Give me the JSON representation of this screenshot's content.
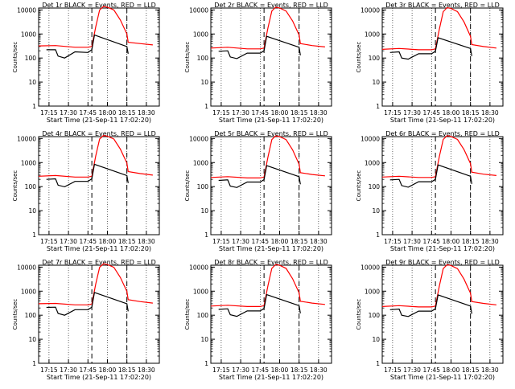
{
  "time_axis_label": "Start Time (21-Sep-11 17:02:20)",
  "colors": {
    "events": "#000000",
    "lld": "#ff0000",
    "frame": "#000000",
    "markers": "#000000"
  },
  "chart_data": [
    {
      "type": "line",
      "title": "Det 1r  BLACK = Events, RED = LLD",
      "xlabel": "Start Time (21-Sep-11 17:02:20)",
      "ylabel": "Counts/sec",
      "yscale": "log",
      "ylim": [
        1,
        12000
      ],
      "xlim": [
        "17:07",
        "18:40"
      ],
      "x_tick_labels": [
        "17:15",
        "17:30",
        "17:45",
        "18:00",
        "18:15",
        "18:30"
      ],
      "y_tick_labels": [
        "1",
        "10",
        "100",
        "1000",
        "10000"
      ],
      "minor_ticks": true,
      "event_markers": [
        "17:48",
        "18:15"
      ],
      "series": [
        {
          "color": "red",
          "x": [
            "17:07",
            "17:20",
            "17:35",
            "17:45",
            "17:48",
            "17:51",
            "17:54",
            "17:57",
            "18:00",
            "18:05",
            "18:10",
            "18:15",
            "18:16",
            "18:25",
            "18:35"
          ],
          "y": [
            320,
            330,
            280,
            280,
            300,
            2000,
            10000,
            14000,
            13000,
            10000,
            3800,
            1000,
            450,
            400,
            350
          ]
        },
        {
          "color": "black",
          "x": [
            "17:13",
            "17:20",
            "17:22",
            "17:27",
            "17:35",
            "17:45",
            "17:48",
            "17:50",
            "18:15",
            "18:16"
          ],
          "y": [
            220,
            220,
            120,
            100,
            180,
            170,
            220,
            900,
            300,
            150
          ]
        }
      ]
    },
    {
      "type": "line",
      "title": "Det 2r  BLACK = Events, RED = LLD",
      "xlabel": "Start Time (21-Sep-11 17:02:20)",
      "ylabel": "Counts/sec",
      "yscale": "log",
      "ylim": [
        1,
        12000
      ],
      "xlim": [
        "17:07",
        "18:40"
      ],
      "x_tick_labels": [
        "17:15",
        "17:30",
        "17:45",
        "18:00",
        "18:15",
        "18:30"
      ],
      "y_tick_labels": [
        "1",
        "10",
        "100",
        "1000",
        "10000"
      ],
      "minor_ticks": true,
      "event_markers": [
        "17:48",
        "18:15"
      ],
      "series": [
        {
          "color": "red",
          "x": [
            "17:07",
            "17:20",
            "17:35",
            "17:45",
            "17:48",
            "17:51",
            "17:54",
            "17:57",
            "18:00",
            "18:05",
            "18:10",
            "18:15",
            "18:16",
            "18:25",
            "18:35"
          ],
          "y": [
            260,
            280,
            240,
            240,
            260,
            1800,
            9000,
            13000,
            12000,
            9000,
            3500,
            900,
            400,
            330,
            290
          ]
        },
        {
          "color": "black",
          "x": [
            "17:13",
            "17:20",
            "17:22",
            "17:27",
            "17:35",
            "17:45",
            "17:48",
            "17:50",
            "18:15",
            "18:16"
          ],
          "y": [
            190,
            200,
            110,
            95,
            160,
            160,
            200,
            800,
            280,
            130
          ]
        }
      ]
    },
    {
      "type": "line",
      "title": "Det 3r  BLACK = Events, RED = LLD",
      "xlabel": "Start Time (21-Sep-11 17:02:20)",
      "ylabel": "Counts/sec",
      "yscale": "log",
      "ylim": [
        1,
        12000
      ],
      "xlim": [
        "17:07",
        "18:40"
      ],
      "x_tick_labels": [
        "17:15",
        "17:30",
        "17:45",
        "18:00",
        "18:15",
        "18:30"
      ],
      "y_tick_labels": [
        "1",
        "10",
        "100",
        "1000",
        "10000"
      ],
      "minor_ticks": true,
      "event_markers": [
        "17:48",
        "18:15"
      ],
      "series": [
        {
          "color": "red",
          "x": [
            "17:07",
            "17:20",
            "17:35",
            "17:45",
            "17:48",
            "17:51",
            "17:54",
            "17:57",
            "18:00",
            "18:05",
            "18:10",
            "18:15",
            "18:16",
            "18:25",
            "18:35"
          ],
          "y": [
            230,
            250,
            220,
            220,
            240,
            1600,
            8500,
            12500,
            11500,
            8500,
            3200,
            800,
            360,
            300,
            260
          ]
        },
        {
          "color": "black",
          "x": [
            "17:13",
            "17:20",
            "17:22",
            "17:27",
            "17:35",
            "17:45",
            "17:48",
            "17:50",
            "18:15",
            "18:16"
          ],
          "y": [
            170,
            180,
            100,
            90,
            150,
            150,
            190,
            700,
            250,
            120
          ]
        }
      ]
    },
    {
      "type": "line",
      "title": "Det 4r  BLACK = Events, RED = LLD",
      "xlabel": "Start Time (21-Sep-11 17:02:20)",
      "ylabel": "Counts/sec",
      "yscale": "log",
      "ylim": [
        1,
        12000
      ],
      "xlim": [
        "17:07",
        "18:40"
      ],
      "x_tick_labels": [
        "17:15",
        "17:30",
        "17:45",
        "18:00",
        "18:15",
        "18:30"
      ],
      "y_tick_labels": [
        "1",
        "10",
        "100",
        "1000",
        "10000"
      ],
      "minor_ticks": true,
      "event_markers": [
        "17:48",
        "18:15"
      ],
      "series": [
        {
          "color": "red",
          "x": [
            "17:07",
            "17:20",
            "17:35",
            "17:45",
            "17:48",
            "17:51",
            "17:54",
            "17:57",
            "18:00",
            "18:05",
            "18:10",
            "18:15",
            "18:16",
            "18:25",
            "18:35"
          ],
          "y": [
            270,
            290,
            250,
            250,
            270,
            1900,
            9500,
            13500,
            12500,
            9500,
            3600,
            950,
            420,
            350,
            300
          ]
        },
        {
          "color": "black",
          "x": [
            "17:13",
            "17:20",
            "17:22",
            "17:27",
            "17:35",
            "17:45",
            "17:48",
            "17:50",
            "18:15",
            "18:16"
          ],
          "y": [
            200,
            210,
            115,
            98,
            165,
            165,
            210,
            850,
            290,
            140
          ]
        }
      ]
    },
    {
      "type": "line",
      "title": "Det 5r  BLACK = Events, RED = LLD",
      "xlabel": "Start Time (21-Sep-11 17:02:20)",
      "ylabel": "Counts/sec",
      "yscale": "log",
      "ylim": [
        1,
        12000
      ],
      "xlim": [
        "17:07",
        "18:40"
      ],
      "x_tick_labels": [
        "17:15",
        "17:30",
        "17:45",
        "18:00",
        "18:15",
        "18:30"
      ],
      "y_tick_labels": [
        "1",
        "10",
        "100",
        "1000",
        "10000"
      ],
      "minor_ticks": true,
      "event_markers": [
        "17:48",
        "18:15"
      ],
      "series": [
        {
          "color": "red",
          "x": [
            "17:07",
            "17:20",
            "17:35",
            "17:45",
            "17:48",
            "17:51",
            "17:54",
            "17:57",
            "18:00",
            "18:05",
            "18:10",
            "18:15",
            "18:16",
            "18:25",
            "18:35"
          ],
          "y": [
            240,
            260,
            230,
            230,
            250,
            1700,
            9000,
            13000,
            12000,
            9000,
            3400,
            850,
            380,
            320,
            280
          ]
        },
        {
          "color": "black",
          "x": [
            "17:13",
            "17:20",
            "17:22",
            "17:27",
            "17:35",
            "17:45",
            "17:48",
            "17:50",
            "18:15",
            "18:16"
          ],
          "y": [
            180,
            190,
            105,
            92,
            155,
            155,
            195,
            750,
            260,
            125
          ]
        }
      ]
    },
    {
      "type": "line",
      "title": "Det 6r  BLACK = Events, RED = LLD",
      "xlabel": "Start Time (21-Sep-11 17:02:20)",
      "ylabel": "Counts/sec",
      "yscale": "log",
      "ylim": [
        1,
        12000
      ],
      "xlim": [
        "17:07",
        "18:40"
      ],
      "x_tick_labels": [
        "17:15",
        "17:30",
        "17:45",
        "18:00",
        "18:15",
        "18:30"
      ],
      "y_tick_labels": [
        "1",
        "10",
        "100",
        "1000",
        "10000"
      ],
      "minor_ticks": true,
      "event_markers": [
        "17:48",
        "18:15"
      ],
      "series": [
        {
          "color": "red",
          "x": [
            "17:07",
            "17:20",
            "17:35",
            "17:45",
            "17:48",
            "17:51",
            "17:54",
            "17:57",
            "18:00",
            "18:05",
            "18:10",
            "18:15",
            "18:16",
            "18:25",
            "18:35"
          ],
          "y": [
            250,
            270,
            240,
            240,
            260,
            1800,
            9200,
            13200,
            12200,
            9200,
            3500,
            900,
            400,
            330,
            290
          ]
        },
        {
          "color": "black",
          "x": [
            "17:13",
            "17:20",
            "17:22",
            "17:27",
            "17:35",
            "17:45",
            "17:48",
            "17:50",
            "18:15",
            "18:16"
          ],
          "y": [
            190,
            200,
            110,
            95,
            160,
            160,
            200,
            800,
            270,
            130
          ]
        }
      ]
    },
    {
      "type": "line",
      "title": "Det 7r  BLACK = Events, RED = LLD",
      "xlabel": "Start Time (21-Sep-11 17:02:20)",
      "ylabel": "Counts/sec",
      "yscale": "log",
      "ylim": [
        1,
        12000
      ],
      "xlim": [
        "17:07",
        "18:40"
      ],
      "x_tick_labels": [
        "17:15",
        "17:30",
        "17:45",
        "18:00",
        "18:15",
        "18:30"
      ],
      "y_tick_labels": [
        "1",
        "10",
        "100",
        "1000",
        "10000"
      ],
      "minor_ticks": true,
      "event_markers": [
        "17:48",
        "18:15"
      ],
      "series": [
        {
          "color": "red",
          "x": [
            "17:07",
            "17:20",
            "17:35",
            "17:45",
            "17:48",
            "17:51",
            "17:54",
            "17:57",
            "18:00",
            "18:05",
            "18:10",
            "18:15",
            "18:16",
            "18:25",
            "18:35"
          ],
          "y": [
            300,
            310,
            270,
            270,
            290,
            2000,
            9800,
            13800,
            12800,
            9800,
            3700,
            980,
            440,
            370,
            320
          ]
        },
        {
          "color": "black",
          "x": [
            "17:13",
            "17:20",
            "17:22",
            "17:27",
            "17:35",
            "17:45",
            "17:48",
            "17:50",
            "18:15",
            "18:16"
          ],
          "y": [
            210,
            215,
            118,
            100,
            170,
            170,
            215,
            880,
            300,
            145
          ]
        }
      ]
    },
    {
      "type": "line",
      "title": "Det 8r  BLACK = Events, RED = LLD",
      "xlabel": "Start Time (21-Sep-11 17:02:20)",
      "ylabel": "Counts/sec",
      "yscale": "log",
      "ylim": [
        1,
        12000
      ],
      "xlim": [
        "17:07",
        "18:40"
      ],
      "x_tick_labels": [
        "17:15",
        "17:30",
        "17:45",
        "18:00",
        "18:15",
        "18:30"
      ],
      "y_tick_labels": [
        "1",
        "10",
        "100",
        "1000",
        "10000"
      ],
      "minor_ticks": true,
      "event_markers": [
        "17:48",
        "18:15"
      ],
      "series": [
        {
          "color": "red",
          "x": [
            "17:07",
            "17:20",
            "17:35",
            "17:45",
            "17:48",
            "17:51",
            "17:54",
            "17:57",
            "18:00",
            "18:05",
            "18:10",
            "18:15",
            "18:16",
            "18:25",
            "18:35"
          ],
          "y": [
            240,
            260,
            230,
            230,
            250,
            1700,
            8900,
            12900,
            11900,
            8900,
            3300,
            850,
            380,
            320,
            280
          ]
        },
        {
          "color": "black",
          "x": [
            "17:13",
            "17:20",
            "17:22",
            "17:27",
            "17:35",
            "17:45",
            "17:48",
            "17:50",
            "18:15",
            "18:16"
          ],
          "y": [
            175,
            185,
            105,
            90,
            150,
            150,
            190,
            720,
            250,
            120
          ]
        }
      ]
    },
    {
      "type": "line",
      "title": "Det 9r  BLACK = Events, RED = LLD",
      "xlabel": "Start Time (21-Sep-11 17:02:20)",
      "ylabel": "Counts/sec",
      "yscale": "log",
      "ylim": [
        1,
        12000
      ],
      "xlim": [
        "17:07",
        "18:40"
      ],
      "x_tick_labels": [
        "17:15",
        "17:30",
        "17:45",
        "18:00",
        "18:15",
        "18:30"
      ],
      "y_tick_labels": [
        "1",
        "10",
        "100",
        "1000",
        "10000"
      ],
      "minor_ticks": true,
      "event_markers": [
        "17:48",
        "18:15"
      ],
      "series": [
        {
          "color": "red",
          "x": [
            "17:07",
            "17:20",
            "17:35",
            "17:45",
            "17:48",
            "17:51",
            "17:54",
            "17:57",
            "18:00",
            "18:05",
            "18:10",
            "18:15",
            "18:16",
            "18:25",
            "18:35"
          ],
          "y": [
            230,
            250,
            220,
            220,
            240,
            1650,
            8700,
            12600,
            11600,
            8700,
            3200,
            820,
            370,
            310,
            270
          ]
        },
        {
          "color": "black",
          "x": [
            "17:13",
            "17:20",
            "17:22",
            "17:27",
            "17:35",
            "17:45",
            "17:48",
            "17:50",
            "18:15",
            "18:16"
          ],
          "y": [
            170,
            180,
            100,
            88,
            148,
            148,
            185,
            700,
            240,
            115
          ]
        }
      ]
    }
  ]
}
